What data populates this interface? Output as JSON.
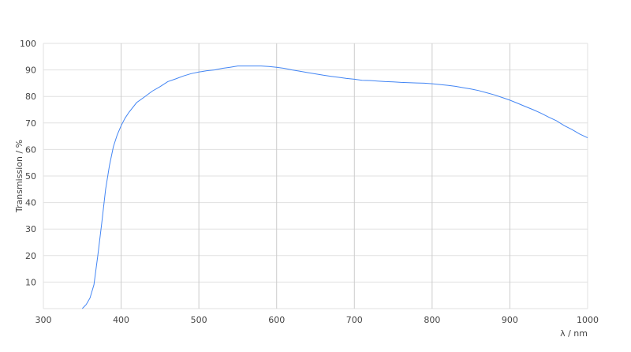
{
  "chart_data": {
    "type": "line",
    "xlabel": "λ / nm",
    "ylabel": "Transmission / %",
    "xlim": [
      300,
      1000
    ],
    "ylim": [
      0,
      100
    ],
    "xticks": [
      300,
      400,
      500,
      600,
      700,
      800,
      900,
      1000
    ],
    "yticks": [
      10,
      20,
      30,
      40,
      50,
      60,
      70,
      80,
      90,
      100
    ],
    "grid": true,
    "line_color": "#4285f4",
    "series": [
      {
        "x": [
          350,
          355,
          360,
          365,
          370,
          375,
          380,
          385,
          390,
          395,
          400,
          405,
          410,
          420,
          430,
          440,
          450,
          460,
          470,
          480,
          490,
          500,
          510,
          520,
          530,
          540,
          550,
          560,
          570,
          580,
          590,
          600,
          610,
          620,
          630,
          640,
          650,
          660,
          670,
          680,
          690,
          700,
          710,
          720,
          730,
          740,
          750,
          760,
          770,
          780,
          790,
          800,
          810,
          820,
          830,
          840,
          850,
          860,
          870,
          880,
          890,
          900,
          910,
          920,
          930,
          940,
          950,
          960,
          970,
          980,
          990,
          1000
        ],
        "y": [
          0,
          1.5,
          4,
          9,
          20,
          32,
          45,
          54,
          61,
          65.5,
          69,
          71.8,
          74,
          77.7,
          79.8,
          82,
          83.7,
          85.6,
          86.6,
          87.7,
          88.6,
          89.2,
          89.7,
          90,
          90.6,
          91,
          91.5,
          91.5,
          91.5,
          91.5,
          91.3,
          91,
          90.6,
          90,
          89.5,
          89,
          88.5,
          88,
          87.6,
          87.2,
          86.8,
          86.5,
          86.1,
          86,
          85.8,
          85.6,
          85.5,
          85.3,
          85.2,
          85.1,
          85,
          84.8,
          84.5,
          84.2,
          83.8,
          83.3,
          82.8,
          82.2,
          81.4,
          80.6,
          79.6,
          78.6,
          77.4,
          76.2,
          75,
          73.7,
          72.2,
          70.8,
          69,
          67.5,
          65.8,
          64.4
        ]
      }
    ]
  }
}
